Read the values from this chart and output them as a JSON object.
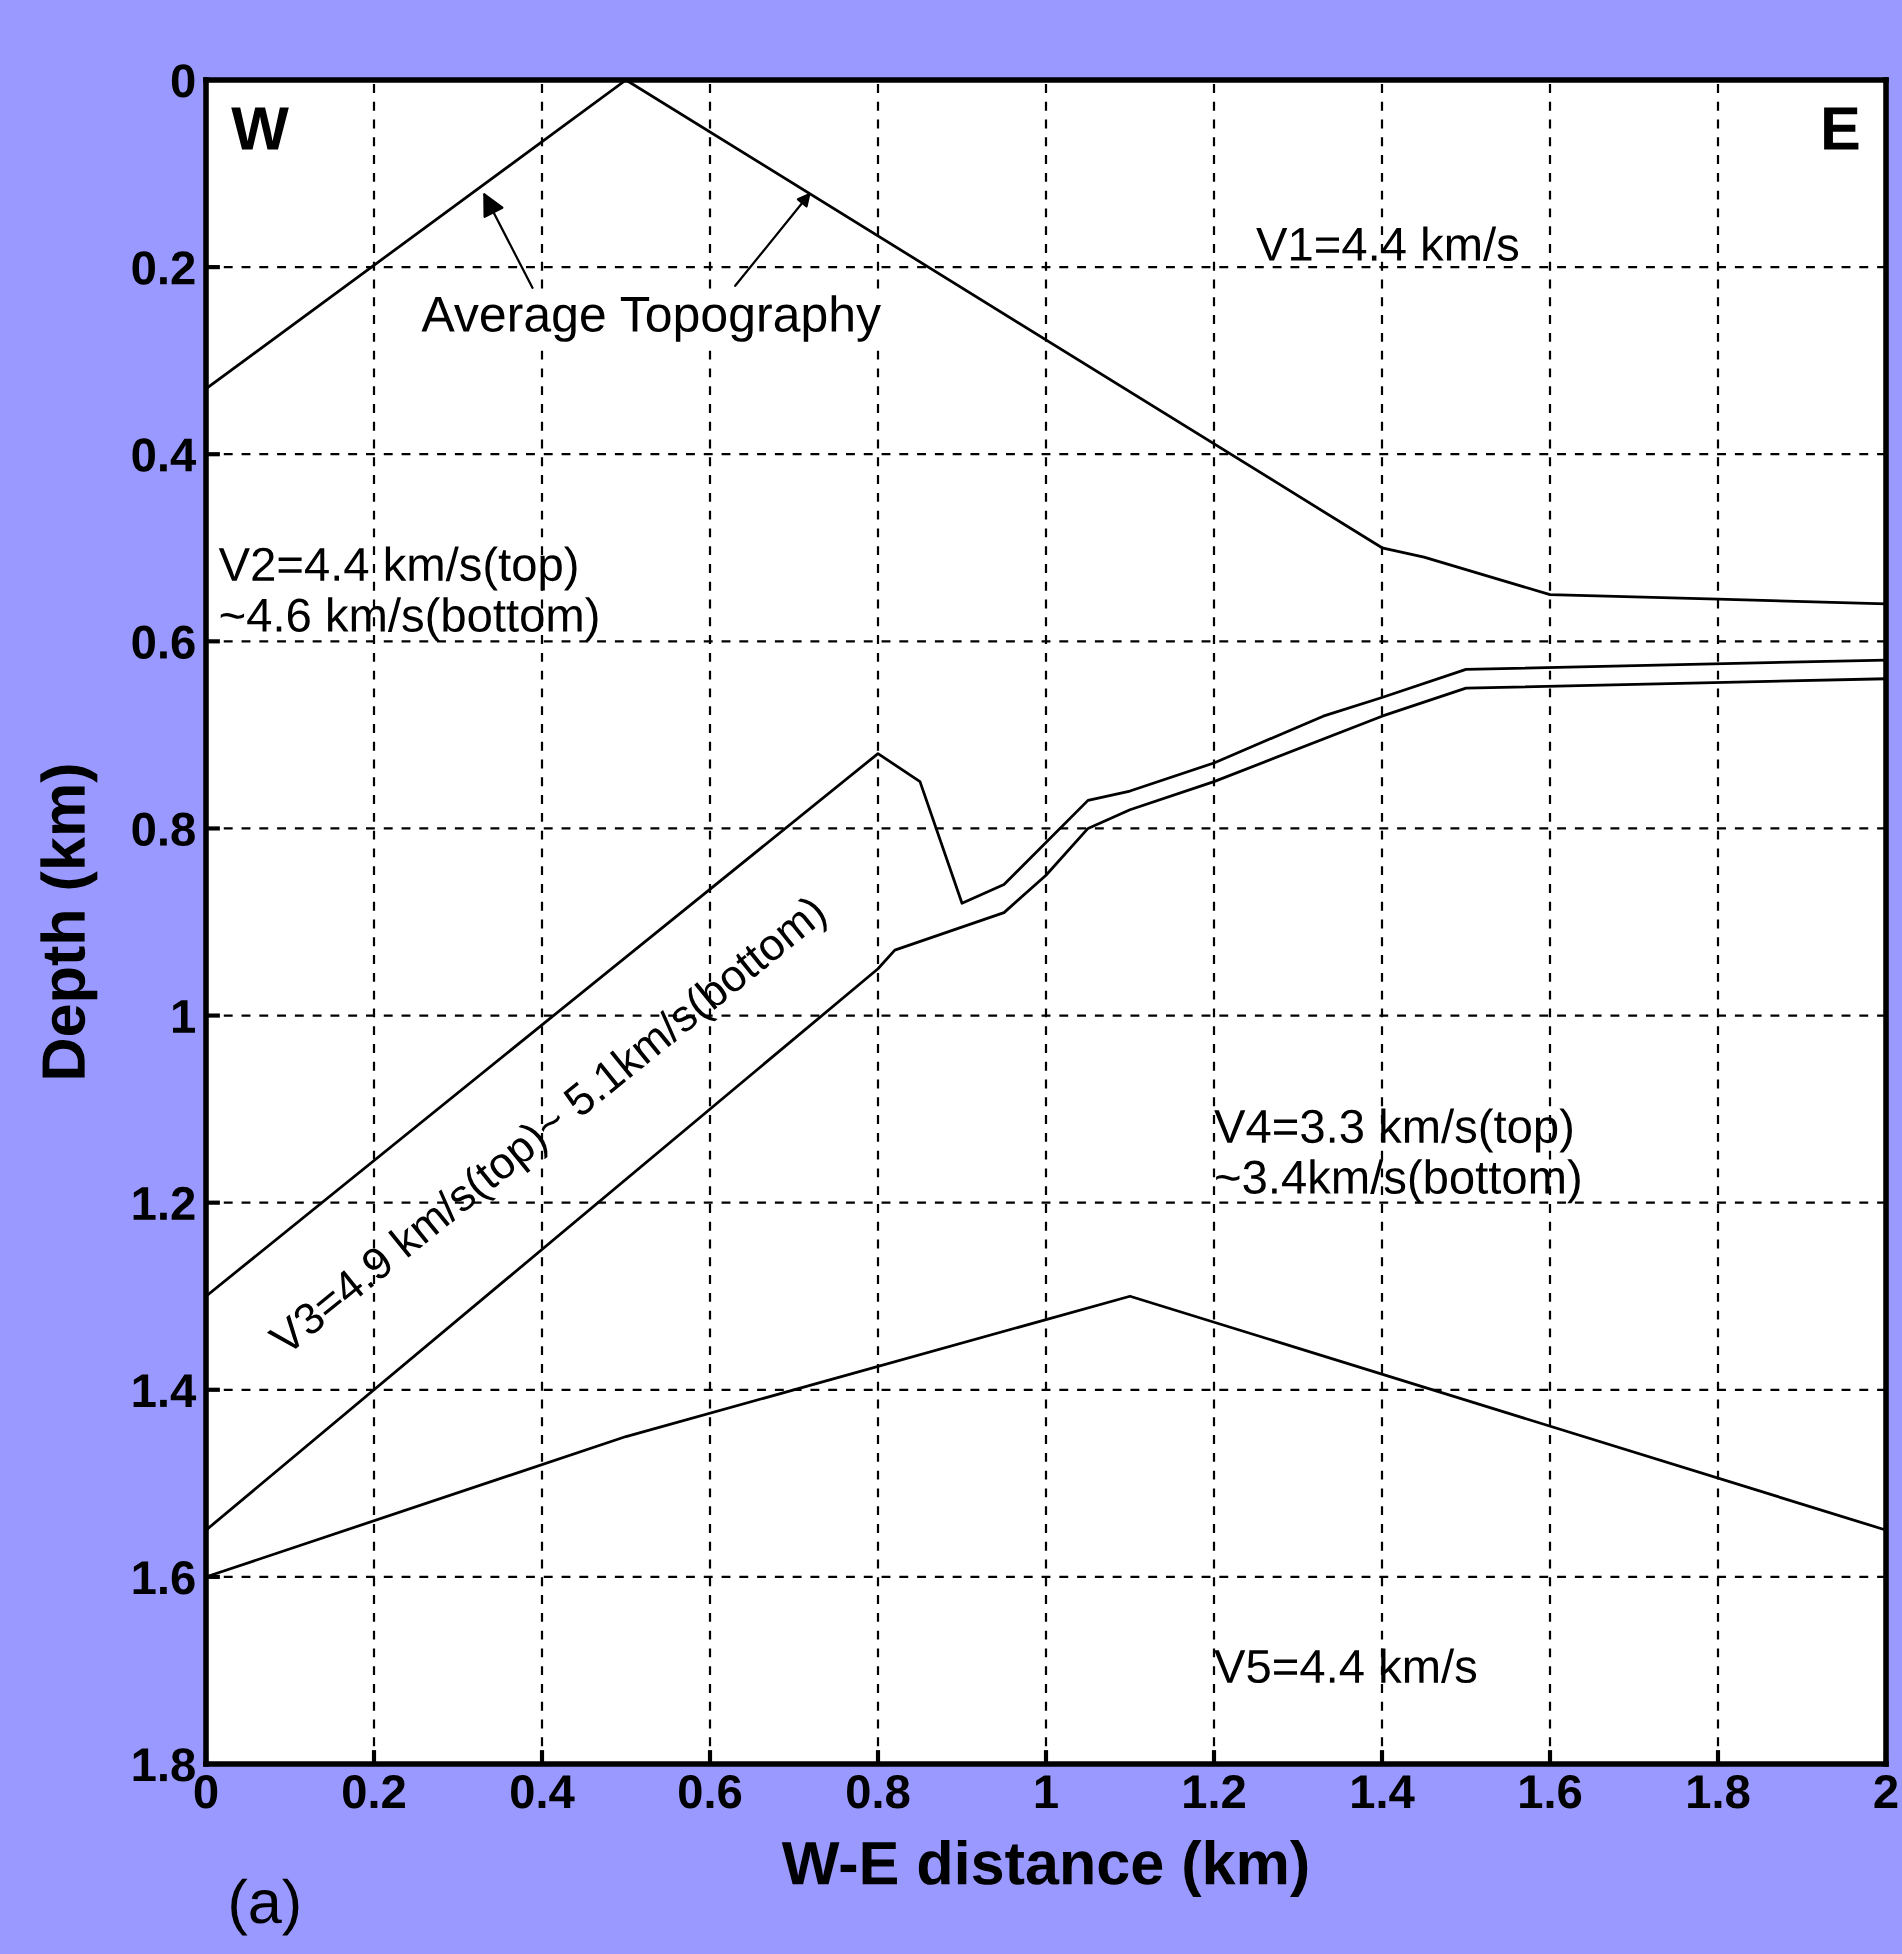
{
  "chart_data": {
    "type": "line",
    "xlabel": "W-E distance (km)",
    "ylabel": "Depth (km)",
    "xlim": [
      0,
      2
    ],
    "ylim": [
      1.8,
      0
    ],
    "xticks": [
      0,
      0.2,
      0.4,
      0.6,
      0.8,
      1,
      1.2,
      1.4,
      1.6,
      1.8,
      2
    ],
    "yticks": [
      0,
      0.2,
      0.4,
      0.6,
      0.8,
      1,
      1.2,
      1.4,
      1.6,
      1.8
    ],
    "grid": true,
    "marker": "none",
    "line_style": "solid",
    "series": [
      {
        "color": "#000000",
        "x": [
          0,
          0.5,
          1.4,
          1.45,
          1.6,
          1.8,
          2
        ],
        "values": [
          0.33,
          0,
          0.5,
          0.51,
          0.55,
          0.555,
          0.56
        ]
      },
      {
        "color": "#000000",
        "x": [
          0,
          0.8,
          0.85,
          0.9,
          0.95,
          1.05,
          1.1,
          1.2,
          1.33,
          1.4,
          1.5,
          2
        ],
        "values": [
          1.3,
          0.72,
          0.75,
          0.88,
          0.86,
          0.77,
          0.76,
          0.73,
          0.68,
          0.66,
          0.63,
          0.62
        ]
      },
      {
        "color": "#000000",
        "x": [
          0,
          0.8,
          0.82,
          0.95,
          1.0,
          1.05,
          1.1,
          1.2,
          1.4,
          1.5,
          2
        ],
        "values": [
          1.55,
          0.95,
          0.93,
          0.89,
          0.85,
          0.8,
          0.78,
          0.75,
          0.68,
          0.65,
          0.64
        ]
      },
      {
        "color": "#000000",
        "x": [
          0,
          0.5,
          1.1,
          2
        ],
        "values": [
          1.6,
          1.45,
          1.3,
          1.55
        ]
      }
    ],
    "annotations": [
      "W",
      "E",
      {
        "text": "Average Topography",
        "x": 0.33,
        "y": 0.12
      },
      "V1=4.4 km/s",
      "V2=4.4 km/s(top)\n~4.6 km/s(bottom)",
      "V3=4.9 km/s(top)~ 5.1km/s(bottom)",
      "V4=3.3 km/s(top)\n~3.4km/s(bottom)",
      "V5=4.4 km/s",
      "(a)"
    ]
  }
}
